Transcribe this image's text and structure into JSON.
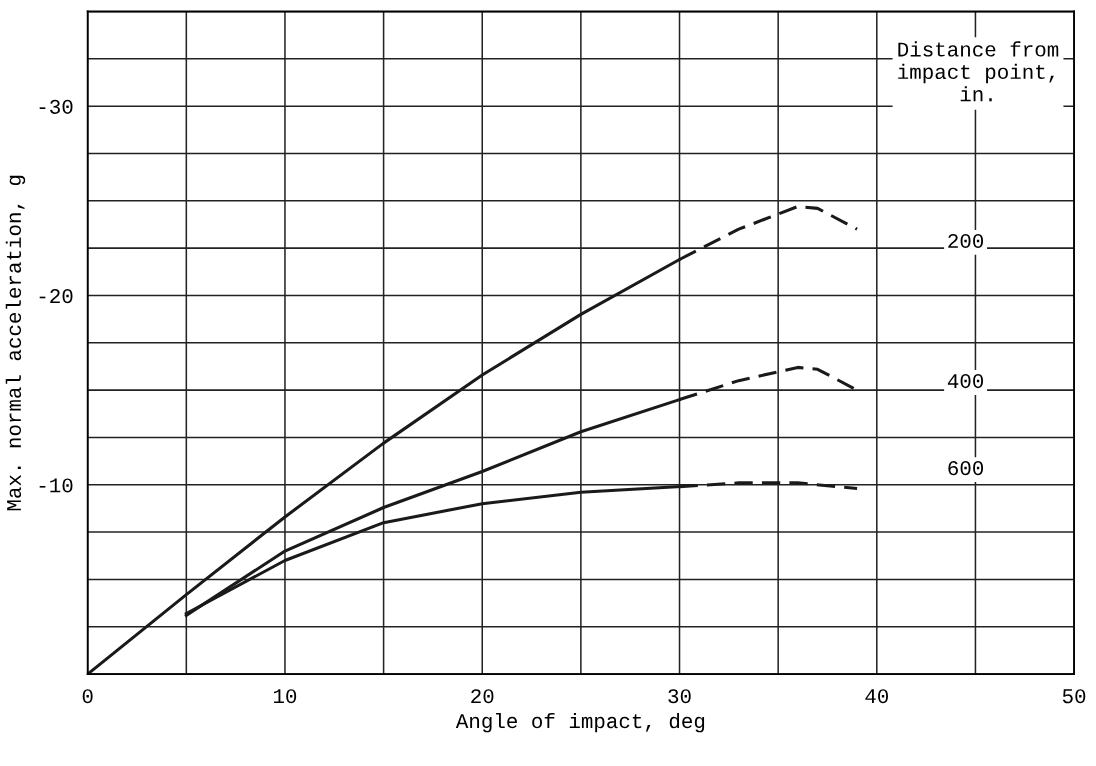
{
  "chart_data": {
    "type": "line",
    "xlabel": "Angle of impact, deg",
    "ylabel": "Max. normal acceleration, g",
    "legend_title": "Distance from impact point, in.",
    "xlim": [
      0,
      50
    ],
    "ylim": [
      0,
      -35
    ],
    "xticks": [
      0,
      {
        "value": 5,
        "label": null
      },
      10,
      {
        "value": 15,
        "label": null
      },
      20,
      {
        "value": 25,
        "label": null
      },
      30,
      {
        "value": 35,
        "label": null
      },
      40,
      {
        "value": 45,
        "label": null
      },
      50
    ],
    "yticks": [
      {
        "value": 0,
        "label": null
      },
      {
        "value": -2.5,
        "label": null
      },
      {
        "value": -5,
        "label": null
      },
      {
        "value": -7.5,
        "label": null
      },
      {
        "value": -10,
        "label": "-10"
      },
      {
        "value": -12.5,
        "label": null
      },
      {
        "value": -15,
        "label": null
      },
      {
        "value": -17.5,
        "label": null
      },
      {
        "value": -20,
        "label": "-20"
      },
      {
        "value": -22.5,
        "label": null
      },
      {
        "value": -25,
        "label": null
      },
      {
        "value": -27.5,
        "label": null
      },
      {
        "value": -30,
        "label": "-30"
      },
      {
        "value": -32.5,
        "label": null
      },
      {
        "value": -35,
        "label": null
      }
    ],
    "grid": true,
    "legend": false,
    "marker": "none",
    "series": [
      {
        "name": "200",
        "color": "#1a1a1a",
        "line_style": "solid",
        "x": [
          0,
          5,
          10,
          15,
          20,
          25,
          30
        ],
        "values": [
          0,
          -4.2,
          -8.3,
          -12.2,
          -15.8,
          -19,
          -21.9
        ]
      },
      {
        "color": "#1a1a1a",
        "line_style": "dashed",
        "x": [
          30,
          33,
          36,
          37,
          39
        ],
        "values": [
          -21.9,
          -23.5,
          -24.7,
          -24.6,
          -23.5
        ]
      },
      {
        "name": "400",
        "color": "#1a1a1a",
        "line_style": "solid",
        "x": [
          5,
          10,
          15,
          20,
          25,
          30
        ],
        "values": [
          -3.1,
          -6.5,
          -8.8,
          -10.7,
          -12.8,
          -14.5
        ]
      },
      {
        "color": "#1a1a1a",
        "line_style": "dashed",
        "x": [
          30,
          33,
          36,
          37,
          39
        ],
        "values": [
          -14.5,
          -15.5,
          -16.2,
          -16.1,
          -15
        ]
      },
      {
        "name": "600",
        "color": "#1a1a1a",
        "line_style": "solid",
        "x": [
          5,
          10,
          15,
          20,
          25,
          30
        ],
        "values": [
          -3.2,
          -6.0,
          -8.0,
          -9.0,
          -9.6,
          -9.9
        ]
      },
      {
        "color": "#1a1a1a",
        "line_style": "dashed",
        "x": [
          30,
          33,
          36,
          39
        ],
        "values": [
          -9.9,
          -10.1,
          -10.1,
          -9.8
        ]
      }
    ]
  }
}
